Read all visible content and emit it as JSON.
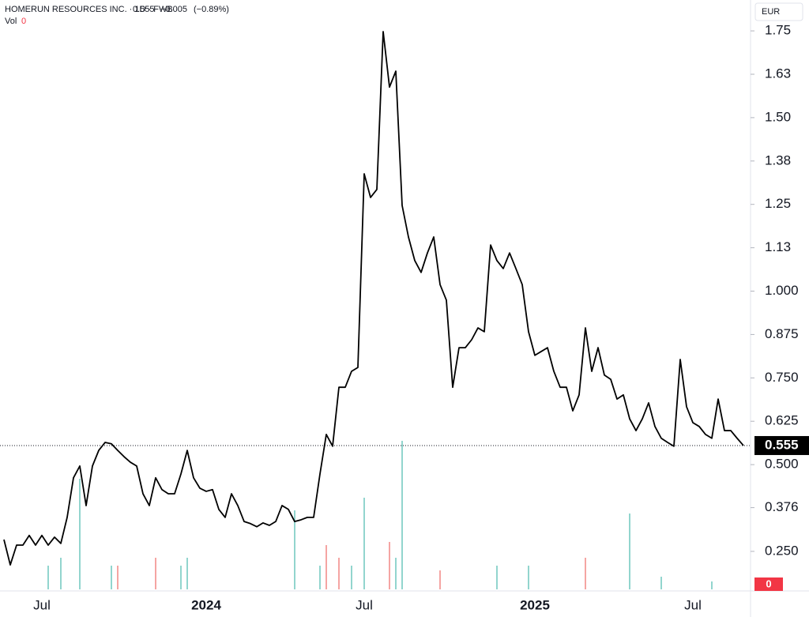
{
  "chart_data": {
    "type": "line",
    "title": "HOMERUN RESOURCES INC. · 1D · FWB",
    "change": {
      "value": -0.005,
      "label": "−0.005"
    },
    "change_pct": {
      "value": -0.89,
      "label": "(−0.89%)"
    },
    "volume_title": "Vol",
    "volume_label": 0,
    "currency": "EUR",
    "categories": [
      null,
      null,
      null,
      null,
      null,
      null,
      "Jul",
      null,
      null,
      null,
      null,
      null,
      null,
      null,
      null,
      null,
      null,
      null,
      null,
      null,
      null,
      null,
      null,
      null,
      null,
      null,
      null,
      null,
      null,
      null,
      null,
      null,
      "2024",
      null,
      null,
      null,
      null,
      null,
      null,
      null,
      null,
      null,
      null,
      null,
      null,
      null,
      null,
      null,
      null,
      null,
      null,
      null,
      null,
      null,
      null,
      null,
      null,
      "Jul",
      null,
      null,
      null,
      null,
      null,
      null,
      null,
      null,
      null,
      null,
      null,
      null,
      null,
      null,
      null,
      null,
      null,
      null,
      null,
      null,
      null,
      null,
      null,
      null,
      null,
      null,
      "2025",
      null,
      null,
      null,
      null,
      null,
      null,
      null,
      null,
      null,
      null,
      null,
      null,
      null,
      null,
      null,
      null,
      null,
      null,
      null,
      null,
      null,
      null,
      null,
      null,
      "Jul",
      null,
      null,
      null,
      null,
      null,
      null,
      null,
      null
    ],
    "series": [
      {
        "color": "#000000",
        "values": [
          0.284,
          0.211,
          0.268,
          0.268,
          0.296,
          0.268,
          0.296,
          0.268,
          0.291,
          0.273,
          0.348,
          0.462,
          0.496,
          0.382,
          0.496,
          0.541,
          0.564,
          0.56,
          0.541,
          0.523,
          0.507,
          0.496,
          0.416,
          0.382,
          0.462,
          0.428,
          0.416,
          0.416,
          0.473,
          0.541,
          0.462,
          0.432,
          0.423,
          0.428,
          0.371,
          0.348,
          0.416,
          0.382,
          0.336,
          0.33,
          0.321,
          0.332,
          0.325,
          0.336,
          0.382,
          0.371,
          0.336,
          0.341,
          0.348,
          0.348,
          0.473,
          0.587,
          0.553,
          0.723,
          0.723,
          0.769,
          0.78,
          1.338,
          1.27,
          1.293,
          1.748,
          1.588,
          1.634,
          1.247,
          1.156,
          1.088,
          1.054,
          1.11,
          1.156,
          1.019,
          0.974,
          0.723,
          0.837,
          0.837,
          0.86,
          0.894,
          0.883,
          1.133,
          1.088,
          1.065,
          1.11,
          1.065,
          1.019,
          0.883,
          0.815,
          0.826,
          0.837,
          0.769,
          0.723,
          0.723,
          0.655,
          0.701,
          0.894,
          0.769,
          0.837,
          0.758,
          0.746,
          0.689,
          0.701,
          0.632,
          0.598,
          0.632,
          0.678,
          0.61,
          0.576,
          0.564,
          0.553,
          0.803,
          0.667,
          0.621,
          0.61,
          0.587,
          0.576,
          0.689,
          0.598,
          0.598,
          0.576,
          0.555
        ]
      }
    ],
    "volume": {
      "up_color": "#92d5ce",
      "down_color": "#f5a5a3",
      "lim": [
        0,
        100
      ],
      "up": [
        null,
        null,
        null,
        null,
        null,
        null,
        null,
        15,
        null,
        20,
        null,
        null,
        70,
        null,
        null,
        null,
        null,
        15,
        null,
        null,
        null,
        null,
        null,
        null,
        null,
        null,
        null,
        null,
        15,
        20,
        null,
        null,
        null,
        null,
        null,
        null,
        null,
        null,
        null,
        null,
        null,
        null,
        null,
        null,
        null,
        null,
        50,
        null,
        null,
        null,
        15,
        null,
        null,
        null,
        null,
        15,
        null,
        58,
        null,
        null,
        null,
        null,
        20,
        94,
        null,
        null,
        null,
        null,
        null,
        null,
        null,
        null,
        null,
        null,
        null,
        null,
        null,
        null,
        15,
        null,
        null,
        null,
        null,
        15,
        null,
        null,
        null,
        null,
        null,
        null,
        null,
        null,
        null,
        null,
        null,
        null,
        null,
        null,
        null,
        48,
        null,
        null,
        null,
        null,
        8,
        null,
        null,
        null,
        null,
        null,
        null,
        null,
        5,
        null,
        null,
        null,
        null,
        null
      ],
      "down": [
        null,
        null,
        null,
        null,
        null,
        null,
        null,
        null,
        null,
        null,
        null,
        null,
        null,
        null,
        null,
        null,
        null,
        null,
        15,
        null,
        null,
        null,
        null,
        null,
        20,
        null,
        null,
        null,
        null,
        null,
        null,
        null,
        null,
        null,
        null,
        null,
        null,
        null,
        null,
        null,
        null,
        null,
        null,
        null,
        null,
        null,
        null,
        null,
        null,
        null,
        null,
        28,
        null,
        20,
        null,
        null,
        null,
        null,
        null,
        null,
        null,
        30,
        null,
        null,
        null,
        null,
        null,
        null,
        null,
        12,
        null,
        null,
        null,
        null,
        null,
        null,
        null,
        null,
        null,
        null,
        null,
        null,
        null,
        null,
        null,
        null,
        null,
        null,
        null,
        null,
        null,
        null,
        20,
        null,
        null,
        null,
        null,
        null,
        null,
        null,
        null,
        null,
        null,
        null,
        null,
        null,
        null,
        null,
        null,
        null,
        null,
        null,
        null,
        null,
        null,
        null,
        null,
        null
      ]
    },
    "ylim": [
      0.136,
      1.839
    ],
    "yticks": [
      1.75,
      {
        "value": 1.625,
        "label": "1.63"
      },
      {
        "value": 1.5,
        "label": "1.50"
      },
      {
        "value": 1.375,
        "label": "1.38"
      },
      1.25,
      {
        "value": 1.125,
        "label": "1.13"
      },
      {
        "value": 1,
        "label": "1.000"
      },
      0.875,
      {
        "value": 0.75,
        "label": "0.750"
      },
      0.625,
      {
        "value": 0.5,
        "label": "0.500"
      },
      0.376,
      {
        "value": 0.25,
        "label": "0.250"
      }
    ],
    "grid": false
  }
}
